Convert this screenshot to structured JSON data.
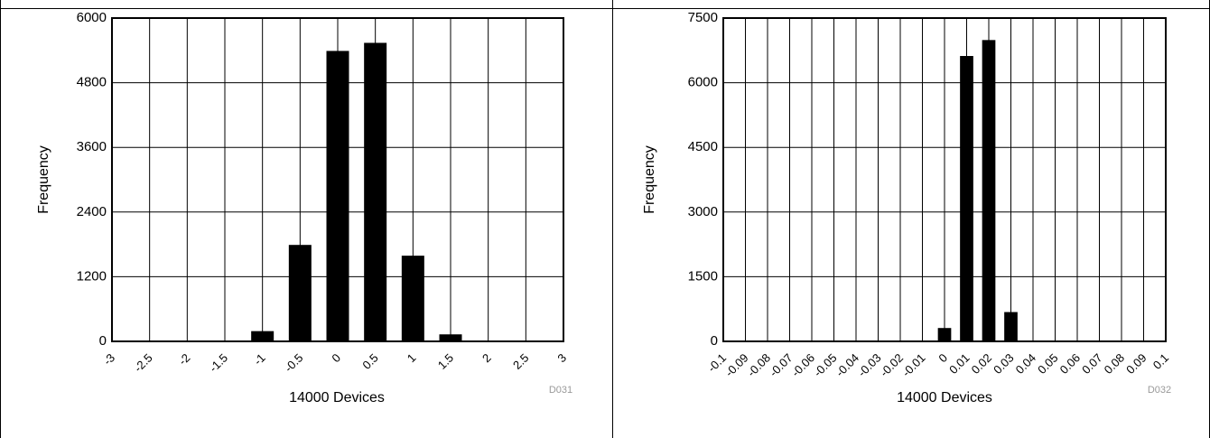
{
  "chart_data": [
    {
      "type": "bar",
      "xlabel": "14000 Devices",
      "ylabel": "Frequency",
      "figure_id": "D031",
      "ylim": [
        0,
        6000
      ],
      "yticks": [
        "0",
        "1200",
        "2400",
        "3600",
        "4800",
        "6000"
      ],
      "categories": [
        "-3",
        "-2.5",
        "-2",
        "-1.5",
        "-1",
        "-0.5",
        "0",
        "0.5",
        "1",
        "1.5",
        "2",
        "2.5",
        "3"
      ],
      "values": [
        0,
        0,
        0,
        10,
        190,
        1790,
        5390,
        5540,
        1590,
        130,
        0,
        0,
        0
      ],
      "grid": true
    },
    {
      "type": "bar",
      "xlabel": "14000 Devices",
      "ylabel": "Frequency",
      "figure_id": "D032",
      "ylim": [
        0,
        7500
      ],
      "yticks": [
        "0",
        "1500",
        "3000",
        "4500",
        "6000",
        "7500"
      ],
      "categories": [
        "-0.1",
        "-0.09",
        "-0.08",
        "-0.07",
        "-0.06",
        "-0.05",
        "-0.04",
        "-0.03",
        "-0.02",
        "-0.01",
        "0",
        "0.01",
        "0.02",
        "0.03",
        "0.04",
        "0.05",
        "0.06",
        "0.07",
        "0.08",
        "0.09",
        "0.1"
      ],
      "values": [
        0,
        0,
        0,
        0,
        0,
        0,
        0,
        0,
        0,
        0,
        310,
        6620,
        6990,
        680,
        10,
        0,
        0,
        0,
        0,
        0,
        0
      ],
      "grid": true
    }
  ]
}
